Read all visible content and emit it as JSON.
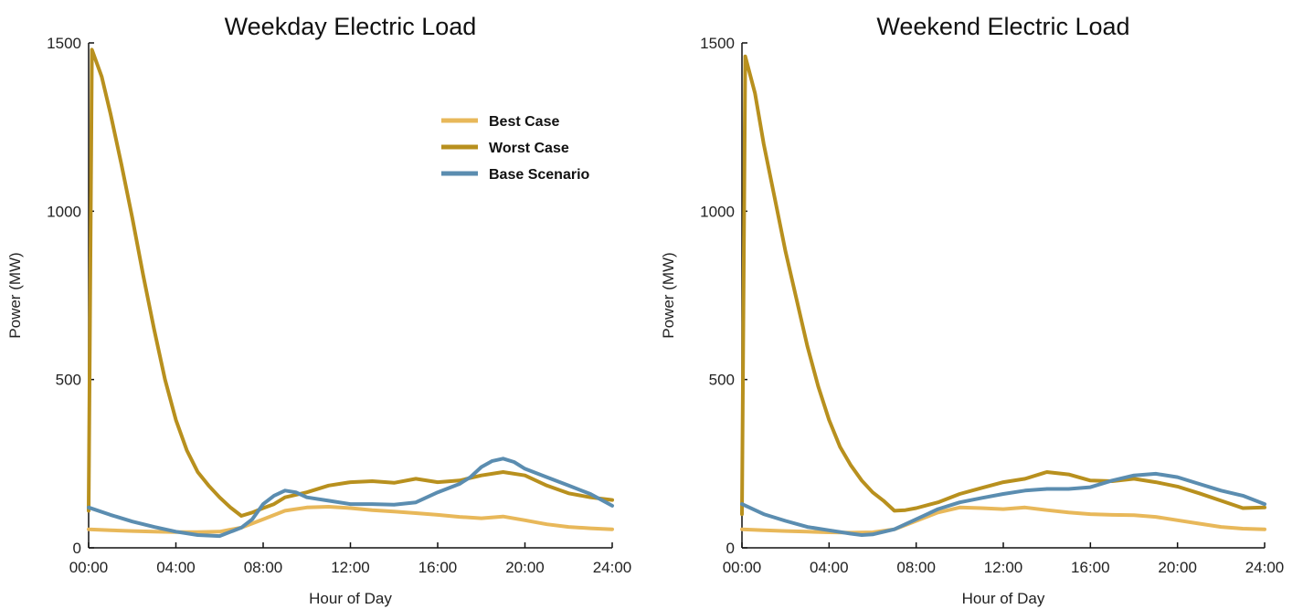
{
  "colors": {
    "best_case": "#E8B85A",
    "worst_case": "#B8901E",
    "base_scenario": "#5B8DB0"
  },
  "chart_data": [
    {
      "type": "line",
      "title": "Weekday Electric Load",
      "xlabel": "Hour of Day",
      "ylabel": "Power (MW)",
      "xlim": [
        0,
        24
      ],
      "ylim": [
        0,
        1500
      ],
      "xticks": [
        {
          "value": 0,
          "label": "00:00"
        },
        {
          "value": 4,
          "label": "04:00"
        },
        {
          "value": 8,
          "label": "08:00"
        },
        {
          "value": 12,
          "label": "12:00"
        },
        {
          "value": 16,
          "label": "16:00"
        },
        {
          "value": 20,
          "label": "20:00"
        },
        {
          "value": 24,
          "label": "24:00"
        }
      ],
      "yticks": [
        {
          "value": 0,
          "label": "0"
        },
        {
          "value": 500,
          "label": "500"
        },
        {
          "value": 1000,
          "label": "1000"
        },
        {
          "value": 1500,
          "label": "1500"
        }
      ],
      "legend": {
        "position": "top-right"
      },
      "grid": false,
      "series": [
        {
          "name": "Best Case",
          "color_key": "best_case",
          "x": [
            0,
            1,
            2,
            3,
            4,
            5,
            6,
            7,
            8,
            9,
            10,
            11,
            12,
            13,
            14,
            15,
            16,
            17,
            18,
            19,
            20,
            21,
            22,
            23,
            24
          ],
          "y": [
            55,
            52,
            50,
            48,
            47,
            47,
            48,
            60,
            85,
            110,
            120,
            122,
            118,
            112,
            108,
            103,
            98,
            92,
            88,
            93,
            82,
            70,
            62,
            58,
            55
          ]
        },
        {
          "name": "Worst Case",
          "color_key": "worst_case",
          "x": [
            0,
            0.15,
            0.6,
            1,
            1.5,
            2,
            2.5,
            3,
            3.5,
            4,
            4.5,
            5,
            5.5,
            6,
            6.5,
            7,
            7.5,
            8,
            8.5,
            9,
            10,
            11,
            12,
            13,
            14,
            15,
            16,
            17,
            18,
            19,
            20,
            21,
            22,
            23,
            24
          ],
          "y": [
            110,
            1480,
            1400,
            1290,
            1140,
            980,
            810,
            650,
            500,
            380,
            290,
            225,
            185,
            150,
            120,
            95,
            105,
            118,
            130,
            150,
            165,
            185,
            195,
            198,
            193,
            205,
            195,
            200,
            215,
            225,
            215,
            185,
            162,
            150,
            142
          ]
        },
        {
          "name": "Base Scenario",
          "color_key": "base_scenario",
          "x": [
            0,
            1,
            2,
            3,
            4,
            5,
            6,
            7,
            7.5,
            8,
            8.5,
            9,
            9.5,
            10,
            11,
            12,
            13,
            14,
            15,
            16,
            17,
            17.5,
            18,
            18.5,
            19,
            19.5,
            20,
            21,
            22,
            23,
            24
          ],
          "y": [
            120,
            98,
            78,
            62,
            48,
            38,
            35,
            60,
            85,
            130,
            155,
            170,
            165,
            150,
            140,
            130,
            130,
            128,
            135,
            165,
            190,
            210,
            240,
            258,
            265,
            255,
            235,
            210,
            185,
            160,
            125
          ]
        }
      ]
    },
    {
      "type": "line",
      "title": "Weekend Electric Load",
      "xlabel": "Hour of Day",
      "ylabel": "Power (MW)",
      "xlim": [
        0,
        24
      ],
      "ylim": [
        0,
        1500
      ],
      "xticks": [
        {
          "value": 0,
          "label": "00:00"
        },
        {
          "value": 4,
          "label": "04:00"
        },
        {
          "value": 8,
          "label": "08:00"
        },
        {
          "value": 12,
          "label": "12:00"
        },
        {
          "value": 16,
          "label": "16:00"
        },
        {
          "value": 20,
          "label": "20:00"
        },
        {
          "value": 24,
          "label": "24:00"
        }
      ],
      "yticks": [
        {
          "value": 0,
          "label": "0"
        },
        {
          "value": 500,
          "label": "500"
        },
        {
          "value": 1000,
          "label": "1000"
        },
        {
          "value": 1500,
          "label": "1500"
        }
      ],
      "grid": false,
      "series": [
        {
          "name": "Best Case",
          "color_key": "best_case",
          "x": [
            0,
            1,
            2,
            3,
            4,
            5,
            6,
            7,
            8,
            9,
            10,
            11,
            12,
            13,
            14,
            15,
            16,
            17,
            18,
            19,
            20,
            21,
            22,
            23,
            24
          ],
          "y": [
            55,
            52,
            50,
            48,
            46,
            45,
            46,
            55,
            80,
            105,
            120,
            118,
            115,
            120,
            112,
            105,
            100,
            98,
            97,
            92,
            82,
            72,
            62,
            57,
            55
          ]
        },
        {
          "name": "Worst Case",
          "color_key": "worst_case",
          "x": [
            0,
            0.15,
            0.6,
            1,
            1.5,
            2,
            2.5,
            3,
            3.5,
            4,
            4.5,
            5,
            5.5,
            6,
            6.5,
            7,
            7.5,
            8,
            9,
            10,
            11,
            12,
            13,
            14,
            15,
            16,
            17,
            18,
            19,
            20,
            21,
            22,
            23,
            24
          ],
          "y": [
            100,
            1460,
            1350,
            1200,
            1040,
            880,
            740,
            600,
            480,
            380,
            300,
            245,
            200,
            165,
            140,
            110,
            112,
            118,
            135,
            160,
            178,
            195,
            205,
            225,
            218,
            200,
            198,
            205,
            195,
            182,
            162,
            140,
            118,
            120
          ]
        },
        {
          "name": "Base Scenario",
          "color_key": "base_scenario",
          "x": [
            0,
            1,
            2,
            3,
            4,
            5,
            5.5,
            6,
            7,
            8,
            9,
            10,
            11,
            12,
            13,
            14,
            15,
            16,
            17,
            18,
            19,
            20,
            21,
            22,
            23,
            24
          ],
          "y": [
            130,
            100,
            80,
            62,
            52,
            42,
            38,
            40,
            55,
            85,
            115,
            135,
            148,
            160,
            170,
            175,
            175,
            180,
            200,
            215,
            220,
            210,
            190,
            170,
            155,
            130
          ]
        }
      ]
    }
  ]
}
